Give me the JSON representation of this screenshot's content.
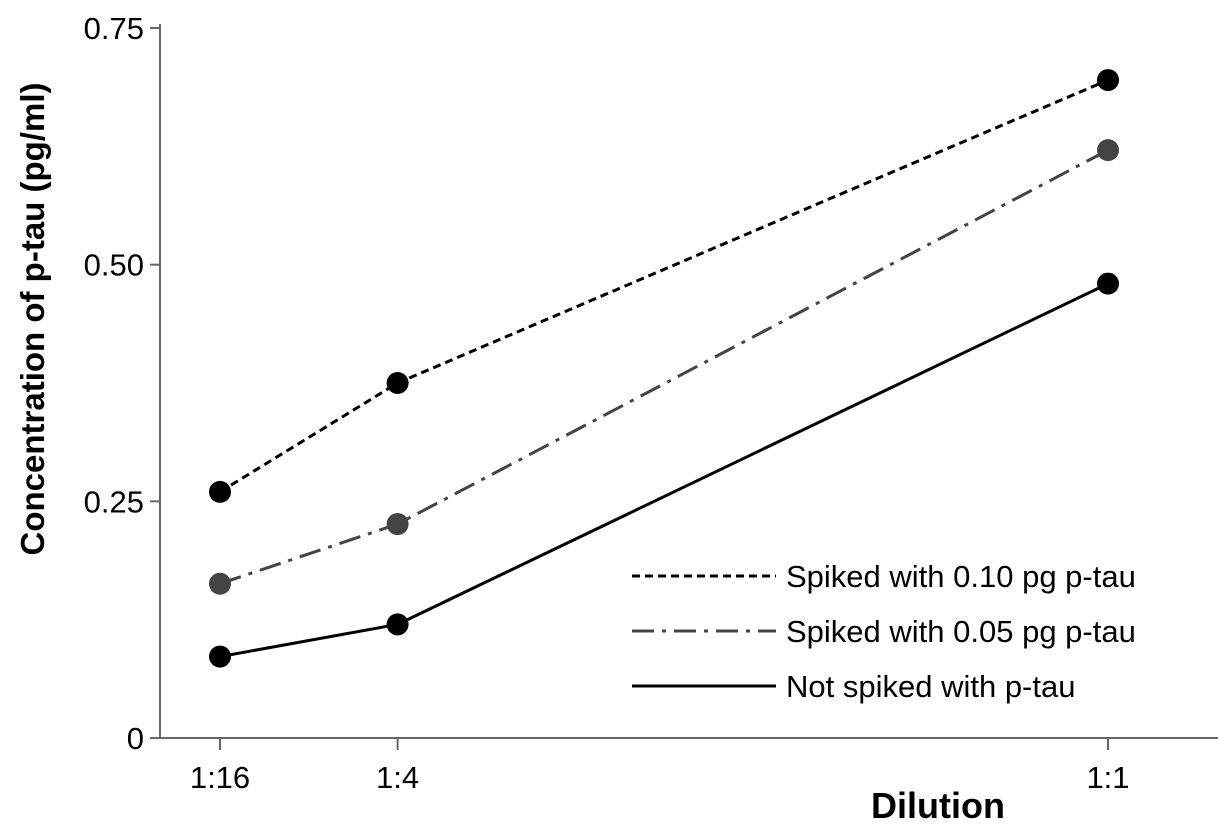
{
  "chart_data": {
    "type": "line",
    "categories": [
      "1:16",
      "1:4",
      "1:1"
    ],
    "x_positions": [
      0.0625,
      0.25,
      1.0
    ],
    "xlabel": "Dilution",
    "ylabel": "Concentration of p-tau (pg/ml)",
    "ylim": [
      0,
      0.75
    ],
    "yticks": [
      {
        "value": 0,
        "label": "0"
      },
      {
        "value": 0.25,
        "label": "0.25"
      },
      {
        "value": 0.5,
        "label": "0.50"
      },
      {
        "value": 0.75,
        "label": "0.75"
      }
    ],
    "grid": false,
    "legend_position": "bottom-right",
    "series": [
      {
        "name": "Spiked with 0.10 pg p-tau",
        "values": [
          0.26,
          0.375,
          0.695
        ],
        "line_style": "dashed",
        "color": "#000000"
      },
      {
        "name": "Spiked with 0.05 pg p-tau",
        "values": [
          0.163,
          0.226,
          0.621
        ],
        "line_style": "dash-dot",
        "color": "#444444"
      },
      {
        "name": "Not spiked with p-tau",
        "values": [
          0.086,
          0.12,
          0.48
        ],
        "line_style": "solid",
        "color": "#000000"
      }
    ]
  }
}
